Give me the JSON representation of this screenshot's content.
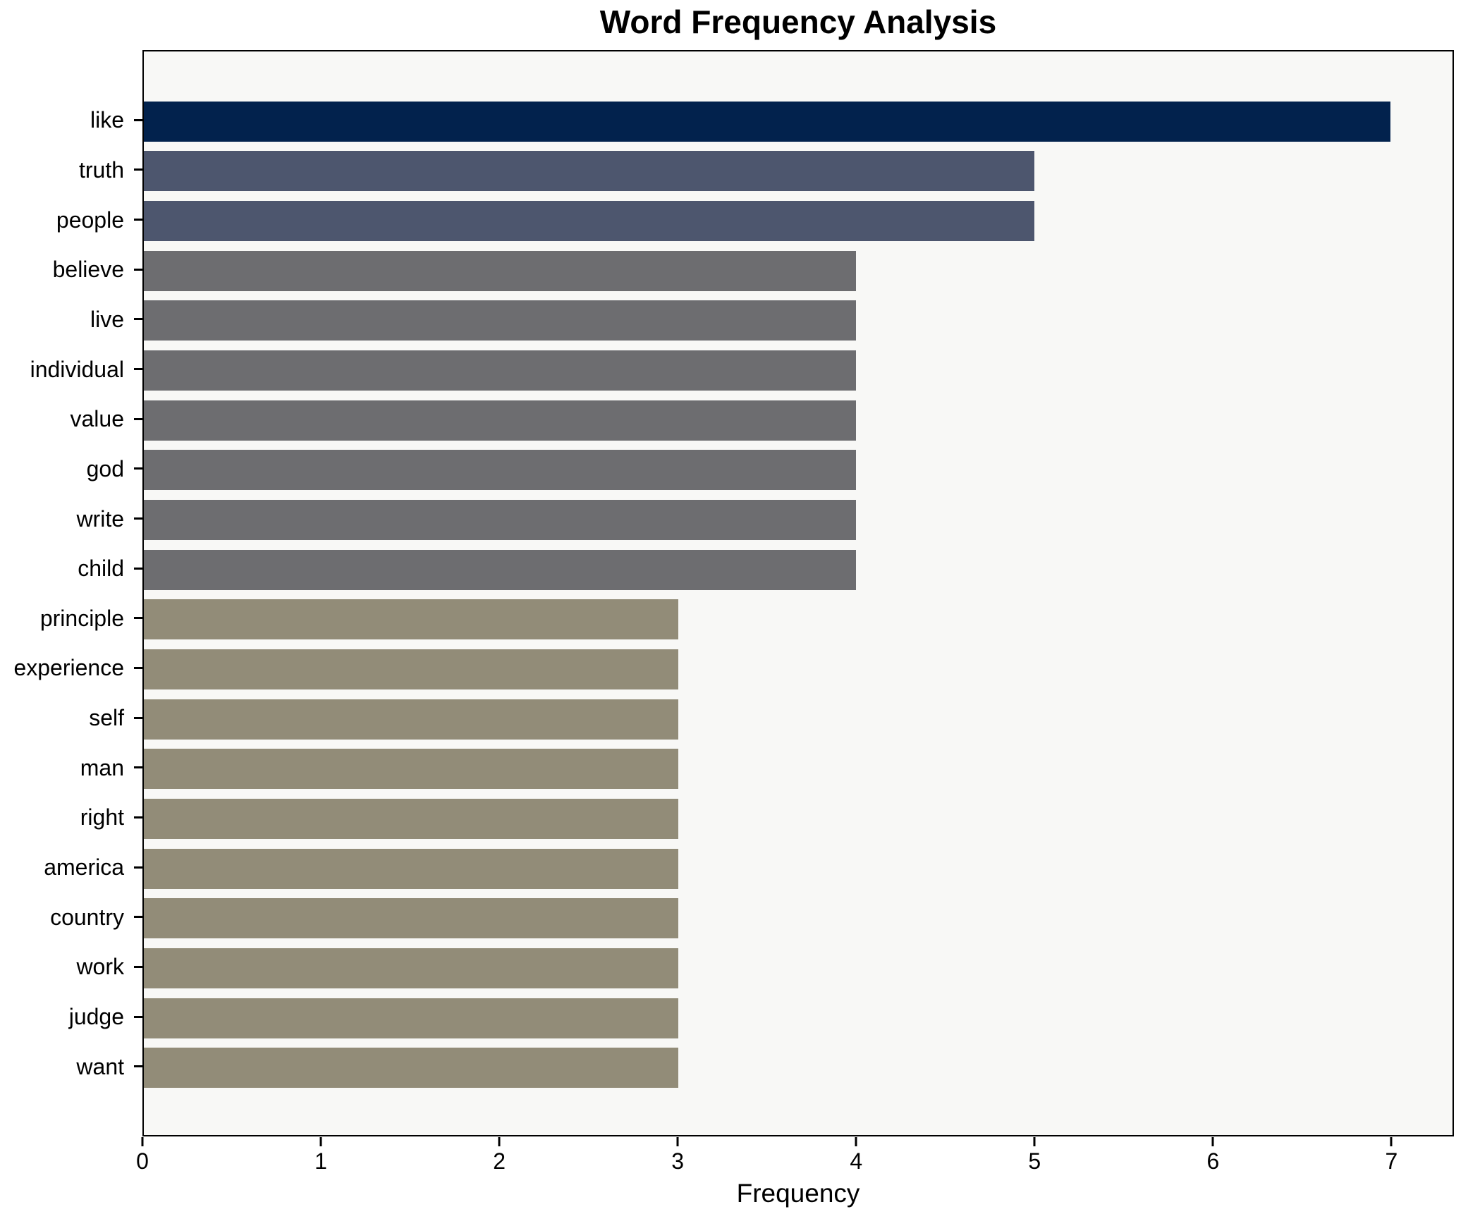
{
  "title": "Word Frequency Analysis",
  "chart_data": {
    "type": "bar",
    "orientation": "horizontal",
    "title": "Word Frequency Analysis",
    "xlabel": "Frequency",
    "ylabel": "",
    "categories": [
      "like",
      "truth",
      "people",
      "believe",
      "live",
      "individual",
      "value",
      "god",
      "write",
      "child",
      "principle",
      "experience",
      "self",
      "man",
      "right",
      "america",
      "country",
      "work",
      "judge",
      "want"
    ],
    "values": [
      7,
      5,
      5,
      4,
      4,
      4,
      4,
      4,
      4,
      4,
      3,
      3,
      3,
      3,
      3,
      3,
      3,
      3,
      3,
      3
    ],
    "bar_colors": [
      "#02224d",
      "#4d566e",
      "#4d566e",
      "#6d6d70",
      "#6d6d70",
      "#6d6d70",
      "#6d6d70",
      "#6d6d70",
      "#6d6d70",
      "#6d6d70",
      "#928c78",
      "#928c78",
      "#928c78",
      "#928c78",
      "#928c78",
      "#928c78",
      "#928c78",
      "#928c78",
      "#928c78",
      "#928c78"
    ],
    "xticks": [
      "0",
      "1",
      "2",
      "3",
      "4",
      "5",
      "6",
      "7"
    ],
    "xtick_values": [
      0,
      1,
      2,
      3,
      4,
      5,
      6,
      7
    ],
    "xlim": [
      0,
      7.35
    ],
    "grid": false,
    "legend": null,
    "colors": {
      "value_7": "#02224d",
      "value_5": "#4d566e",
      "value_4": "#6d6d70",
      "value_3": "#928c78",
      "plot_background": "#f8f8f6",
      "figure_background": "#ffffff",
      "axis": "#000000",
      "text": "#000000"
    }
  }
}
